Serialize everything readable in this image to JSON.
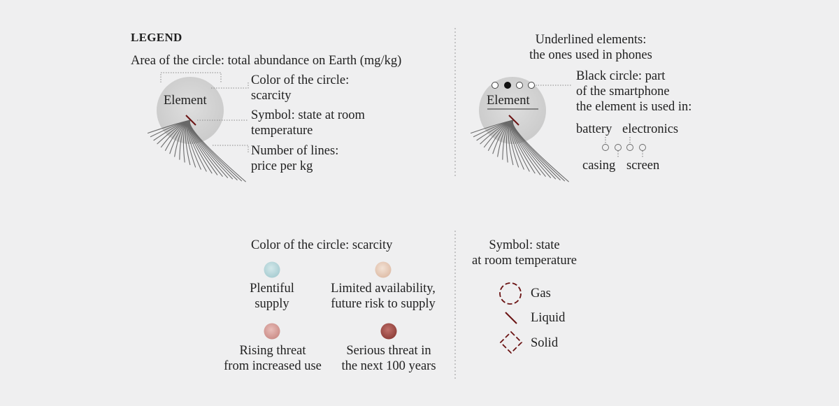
{
  "legend": {
    "title": "LEGEND",
    "area_label": "Area of the circle: total abundance on Earth (mg/kg)",
    "sample_element": "Element",
    "color_label": [
      "Color of the circle:",
      "scarcity"
    ],
    "symbol_label": [
      "Symbol: state at room",
      "temperature"
    ],
    "lines_label": [
      "Number of lines:",
      "price per kg"
    ]
  },
  "phones": {
    "underlined_label": [
      "Underlined elements:",
      "the ones used in phones"
    ],
    "sample_element": "Element",
    "black_circle_label": [
      "Black circle: part",
      "of the smartphone",
      "the element is used in:"
    ],
    "parts": {
      "battery": "battery",
      "electronics": "electronics",
      "casing": "casing",
      "screen": "screen"
    }
  },
  "scarcity": {
    "title": "Color of the circle: scarcity",
    "items": [
      {
        "lines": [
          "Plentiful",
          "supply"
        ],
        "color": "#b9d8dc"
      },
      {
        "lines": [
          "Limited availability,",
          "future risk to supply"
        ],
        "color": "#e8cdbb"
      },
      {
        "lines": [
          "Rising threat",
          "from increased use"
        ],
        "color": "#d9a29e"
      },
      {
        "lines": [
          "Serious threat in",
          "the next 100 years"
        ],
        "color": "#a3504a"
      }
    ]
  },
  "state": {
    "title": [
      "Symbol: state",
      "at room temperature"
    ],
    "items": [
      {
        "label": "Gas",
        "icon": "dashed-circle-icon"
      },
      {
        "label": "Liquid",
        "icon": "slash-icon"
      },
      {
        "label": "Solid",
        "icon": "dashed-diamond-icon"
      }
    ],
    "symbol_color": "#6b1414"
  }
}
